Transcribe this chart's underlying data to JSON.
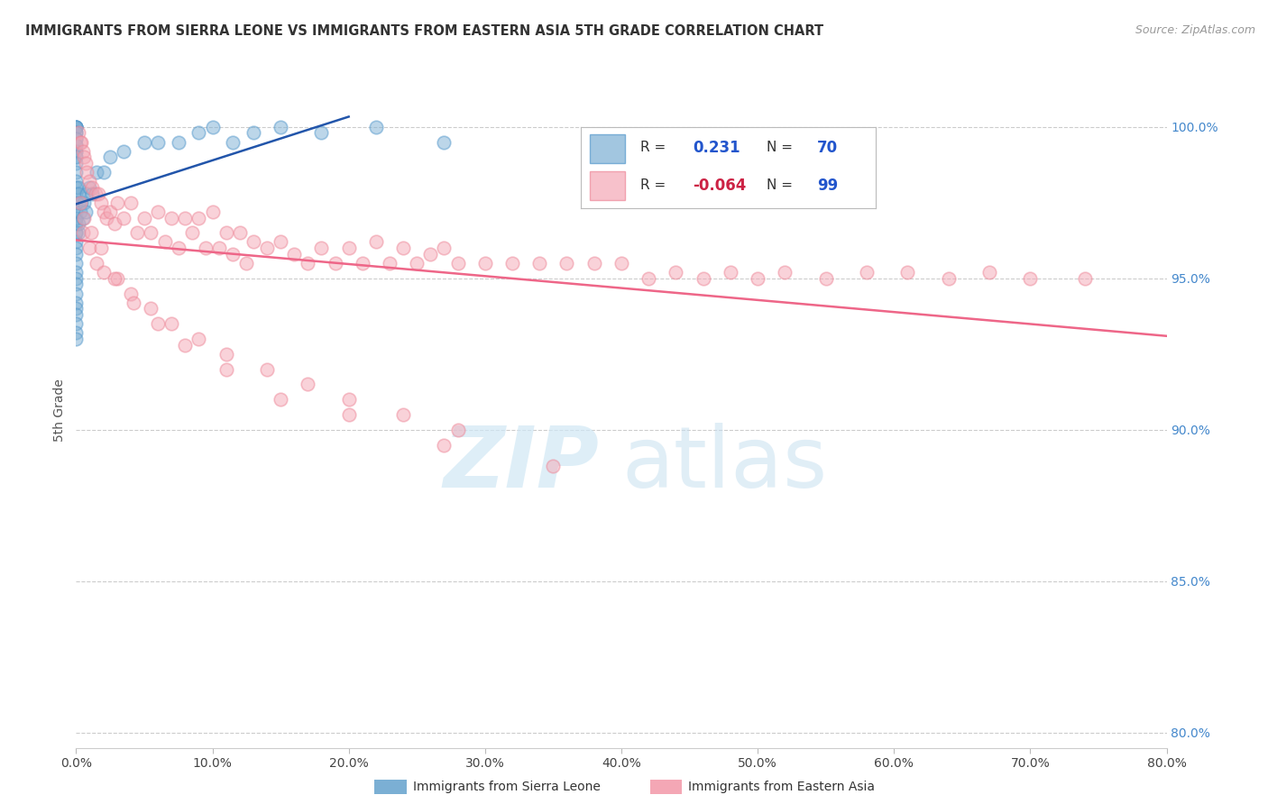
{
  "title": "IMMIGRANTS FROM SIERRA LEONE VS IMMIGRANTS FROM EASTERN ASIA 5TH GRADE CORRELATION CHART",
  "source": "Source: ZipAtlas.com",
  "ylabel": "5th Grade",
  "x_tick_labels": [
    "0.0%",
    "10.0%",
    "20.0%",
    "30.0%",
    "40.0%",
    "50.0%",
    "60.0%",
    "70.0%",
    "80.0%"
  ],
  "x_tick_vals": [
    0.0,
    10.0,
    20.0,
    30.0,
    40.0,
    50.0,
    60.0,
    70.0,
    80.0
  ],
  "y_right_labels": [
    "100.0%",
    "95.0%",
    "90.0%",
    "85.0%",
    "80.0%"
  ],
  "y_right_vals": [
    100.0,
    95.0,
    90.0,
    85.0,
    80.0
  ],
  "xlim": [
    0.0,
    80.0
  ],
  "ylim": [
    79.5,
    101.8
  ],
  "blue_R": 0.231,
  "blue_N": 70,
  "pink_R": -0.064,
  "pink_N": 99,
  "legend_label_blue": "Immigrants from Sierra Leone",
  "legend_label_pink": "Immigrants from Eastern Asia",
  "blue_color": "#7BAFD4",
  "pink_color": "#F4A7B5",
  "blue_edge_color": "#5599CC",
  "pink_edge_color": "#EE8899",
  "blue_line_color": "#2255AA",
  "pink_line_color": "#EE6688",
  "title_fontsize": 10.5,
  "source_fontsize": 9,
  "blue_scatter_x": [
    0.0,
    0.0,
    0.0,
    0.0,
    0.0,
    0.0,
    0.0,
    0.0,
    0.0,
    0.0,
    0.0,
    0.0,
    0.0,
    0.0,
    0.0,
    0.0,
    0.0,
    0.0,
    0.0,
    0.0,
    0.0,
    0.0,
    0.0,
    0.0,
    0.0,
    0.0,
    0.0,
    0.0,
    0.0,
    0.0,
    0.0,
    0.0,
    0.0,
    0.0,
    0.0,
    0.0,
    0.0,
    0.0,
    0.0,
    0.0,
    0.0,
    0.0,
    0.15,
    0.15,
    0.15,
    0.2,
    0.2,
    0.3,
    0.4,
    0.5,
    0.6,
    0.7,
    0.8,
    1.0,
    1.2,
    1.5,
    2.0,
    2.5,
    3.5,
    5.0,
    6.0,
    7.5,
    9.0,
    10.0,
    11.5,
    13.0,
    15.0,
    18.0,
    22.0,
    27.0
  ],
  "blue_scatter_y": [
    100.0,
    100.0,
    100.0,
    100.0,
    100.0,
    99.8,
    99.8,
    99.6,
    99.6,
    99.4,
    99.4,
    99.2,
    99.2,
    99.0,
    99.0,
    98.8,
    98.5,
    98.2,
    98.0,
    97.8,
    97.5,
    97.2,
    97.0,
    96.8,
    96.5,
    96.2,
    96.0,
    95.8,
    95.5,
    95.2,
    95.0,
    94.8,
    94.5,
    94.2,
    94.0,
    93.8,
    93.5,
    93.2,
    93.0,
    97.5,
    96.5,
    97.0,
    98.0,
    97.5,
    96.5,
    97.8,
    96.8,
    97.2,
    97.5,
    97.0,
    97.5,
    97.2,
    97.8,
    98.0,
    97.8,
    98.5,
    98.5,
    99.0,
    99.2,
    99.5,
    99.5,
    99.5,
    99.8,
    100.0,
    99.5,
    99.8,
    100.0,
    99.8,
    100.0,
    99.5
  ],
  "pink_scatter_x": [
    0.2,
    0.3,
    0.4,
    0.5,
    0.6,
    0.7,
    0.8,
    1.0,
    1.2,
    1.4,
    1.6,
    1.8,
    2.0,
    2.2,
    2.5,
    2.8,
    3.0,
    3.5,
    4.0,
    4.5,
    5.0,
    5.5,
    6.0,
    6.5,
    7.0,
    7.5,
    8.0,
    8.5,
    9.0,
    9.5,
    10.0,
    10.5,
    11.0,
    11.5,
    12.0,
    12.5,
    13.0,
    14.0,
    15.0,
    16.0,
    17.0,
    18.0,
    19.0,
    20.0,
    21.0,
    22.0,
    23.0,
    24.0,
    25.0,
    26.0,
    27.0,
    28.0,
    30.0,
    32.0,
    34.0,
    36.0,
    38.0,
    40.0,
    42.0,
    44.0,
    46.0,
    48.0,
    50.0,
    52.0,
    55.0,
    58.0,
    61.0,
    64.0,
    67.0,
    70.0,
    74.0,
    0.5,
    1.0,
    1.5,
    2.0,
    3.0,
    4.0,
    5.5,
    7.0,
    9.0,
    11.0,
    14.0,
    17.0,
    20.0,
    24.0,
    28.0,
    0.3,
    0.6,
    1.1,
    1.8,
    2.8,
    4.2,
    6.0,
    8.0,
    11.0,
    15.0,
    20.0,
    27.0,
    35.0
  ],
  "pink_scatter_y": [
    99.8,
    99.5,
    99.5,
    99.2,
    99.0,
    98.8,
    98.5,
    98.2,
    98.0,
    97.8,
    97.8,
    97.5,
    97.2,
    97.0,
    97.2,
    96.8,
    97.5,
    97.0,
    97.5,
    96.5,
    97.0,
    96.5,
    97.2,
    96.2,
    97.0,
    96.0,
    97.0,
    96.5,
    97.0,
    96.0,
    97.2,
    96.0,
    96.5,
    95.8,
    96.5,
    95.5,
    96.2,
    96.0,
    96.2,
    95.8,
    95.5,
    96.0,
    95.5,
    96.0,
    95.5,
    96.2,
    95.5,
    96.0,
    95.5,
    95.8,
    96.0,
    95.5,
    95.5,
    95.5,
    95.5,
    95.5,
    95.5,
    95.5,
    95.0,
    95.2,
    95.0,
    95.2,
    95.0,
    95.2,
    95.0,
    95.2,
    95.2,
    95.0,
    95.2,
    95.0,
    95.0,
    96.5,
    96.0,
    95.5,
    95.2,
    95.0,
    94.5,
    94.0,
    93.5,
    93.0,
    92.5,
    92.0,
    91.5,
    91.0,
    90.5,
    90.0,
    97.5,
    97.0,
    96.5,
    96.0,
    95.0,
    94.2,
    93.5,
    92.8,
    92.0,
    91.0,
    90.5,
    89.5,
    88.8
  ]
}
